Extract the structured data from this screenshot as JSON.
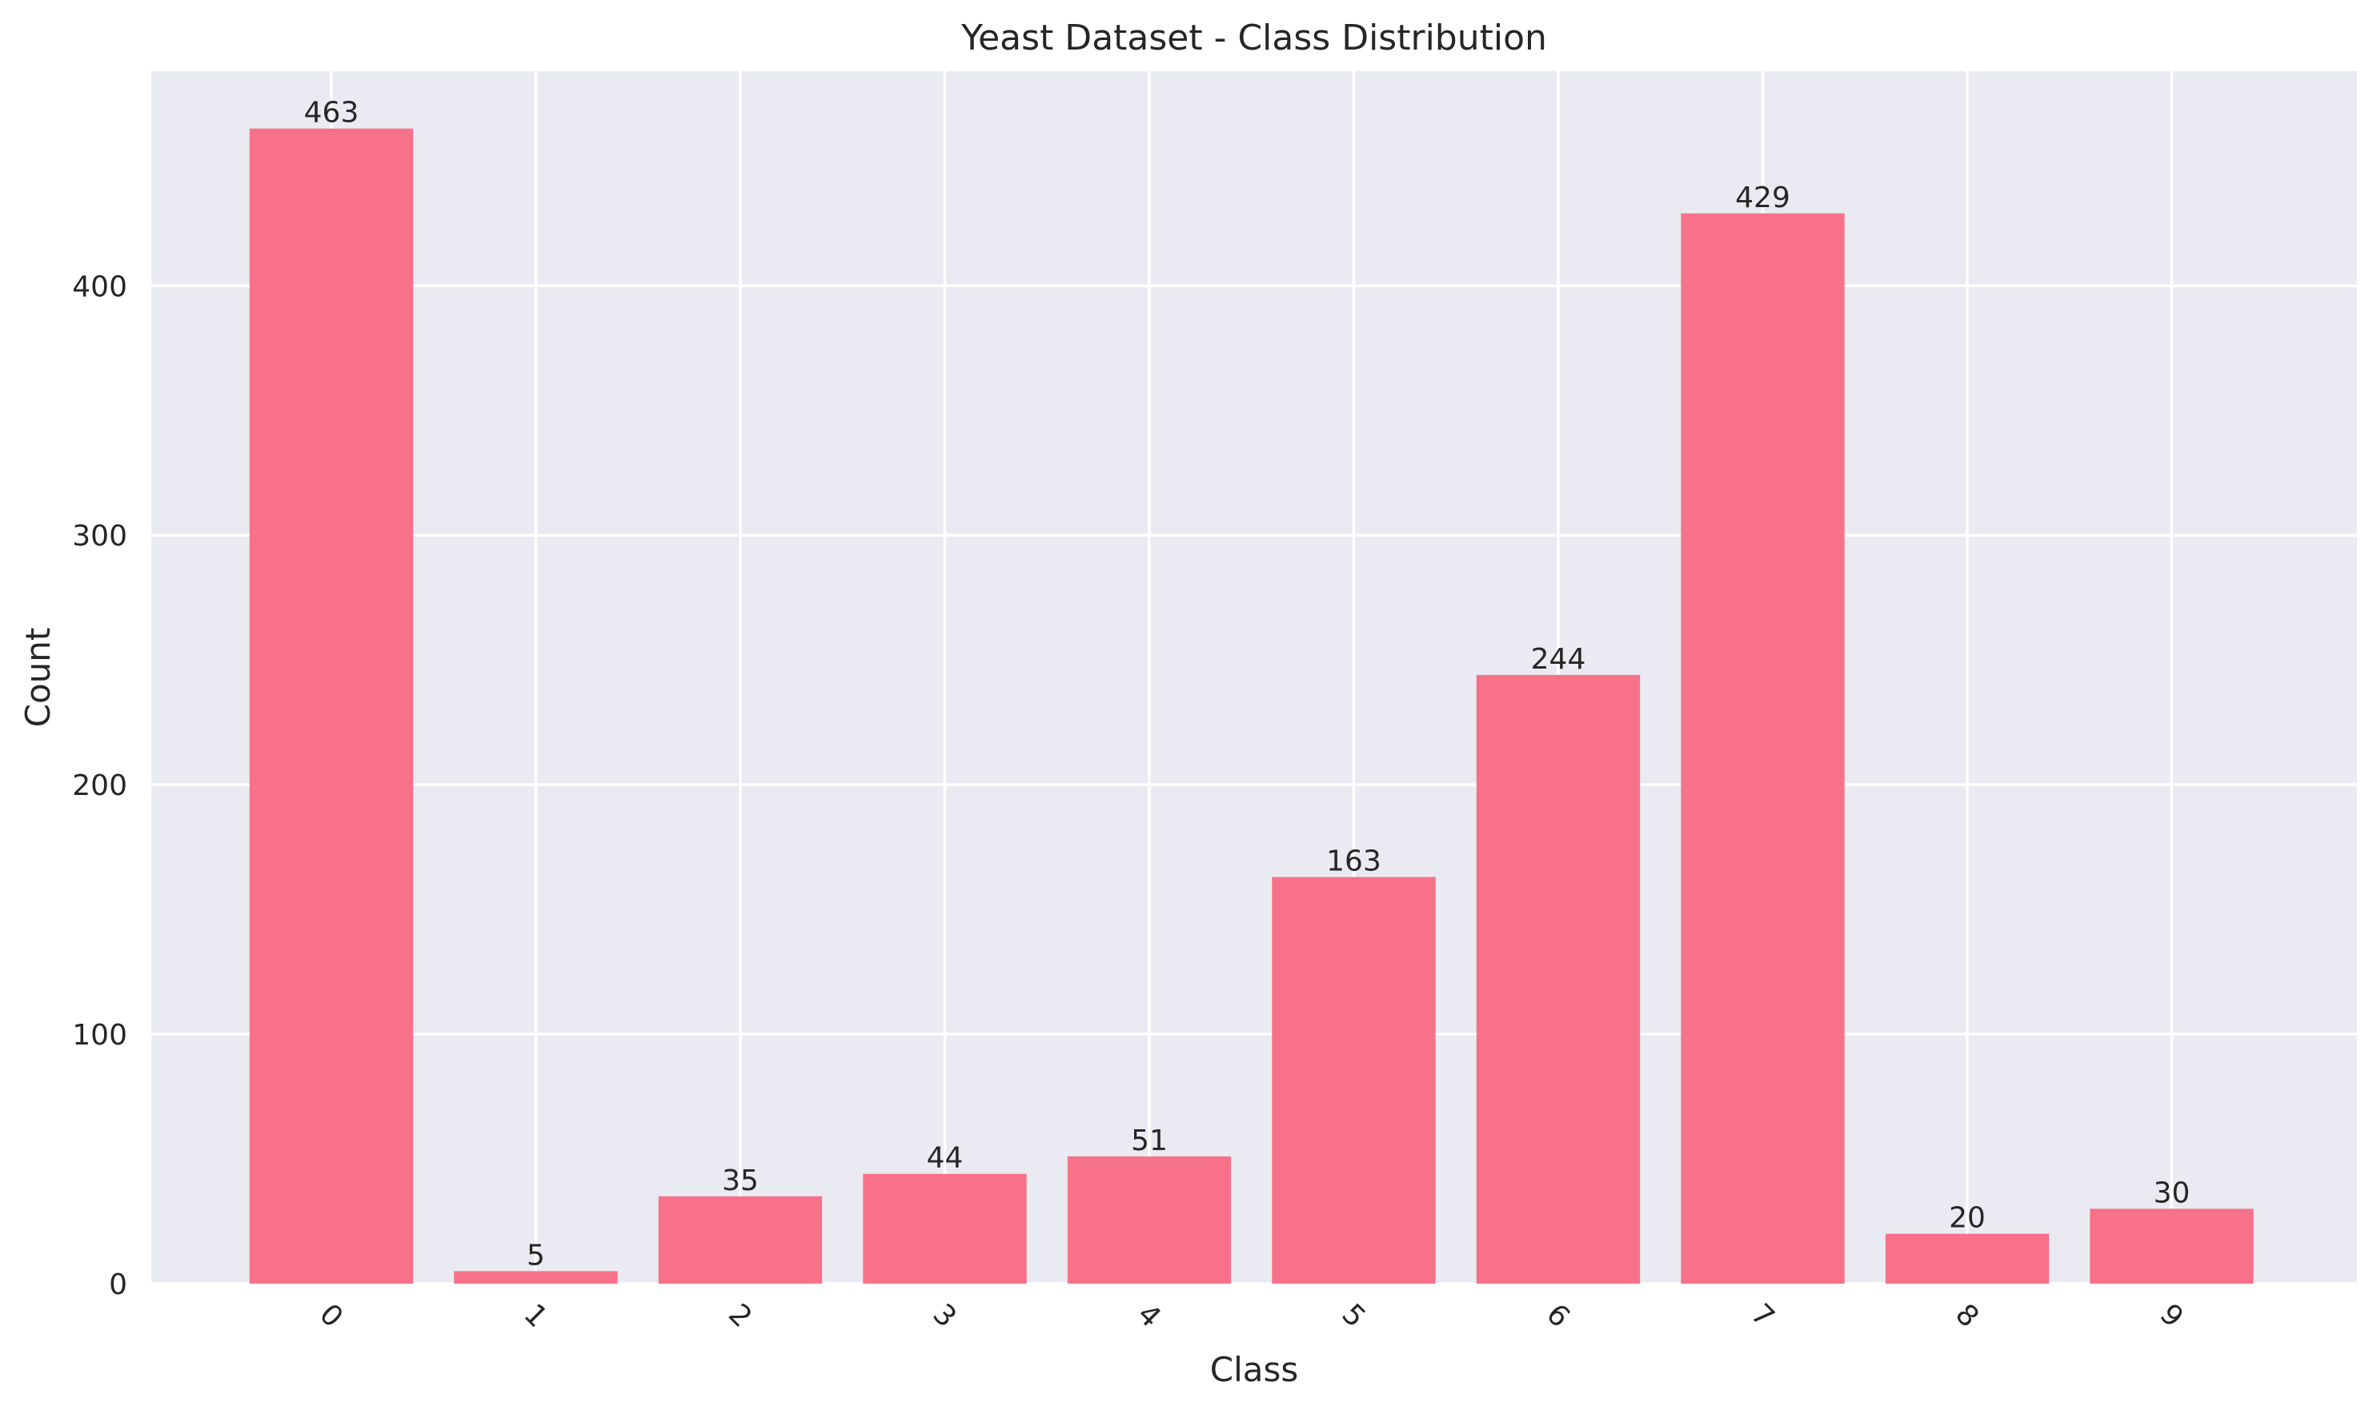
{
  "chart_data": {
    "type": "bar",
    "title": "Yeast Dataset - Class Distribution",
    "xlabel": "Class",
    "ylabel": "Count",
    "categories": [
      "0",
      "1",
      "2",
      "3",
      "4",
      "5",
      "6",
      "7",
      "8",
      "9"
    ],
    "values": [
      463,
      5,
      35,
      44,
      51,
      163,
      244,
      429,
      20,
      30
    ],
    "data_labels": [
      "463",
      "5",
      "35",
      "44",
      "51",
      "163",
      "244",
      "429",
      "20",
      "30"
    ],
    "ylim": [
      0,
      486
    ],
    "yticks": [
      0,
      100,
      200,
      300,
      400
    ],
    "ytick_labels": [
      "0",
      "100",
      "200",
      "300",
      "400"
    ],
    "x_tick_rotation_deg": 45,
    "grid": true,
    "colors": {
      "bar": "#f77189",
      "plot_background": "#eaeaf2",
      "grid": "#ffffff",
      "text": "#262626"
    }
  }
}
